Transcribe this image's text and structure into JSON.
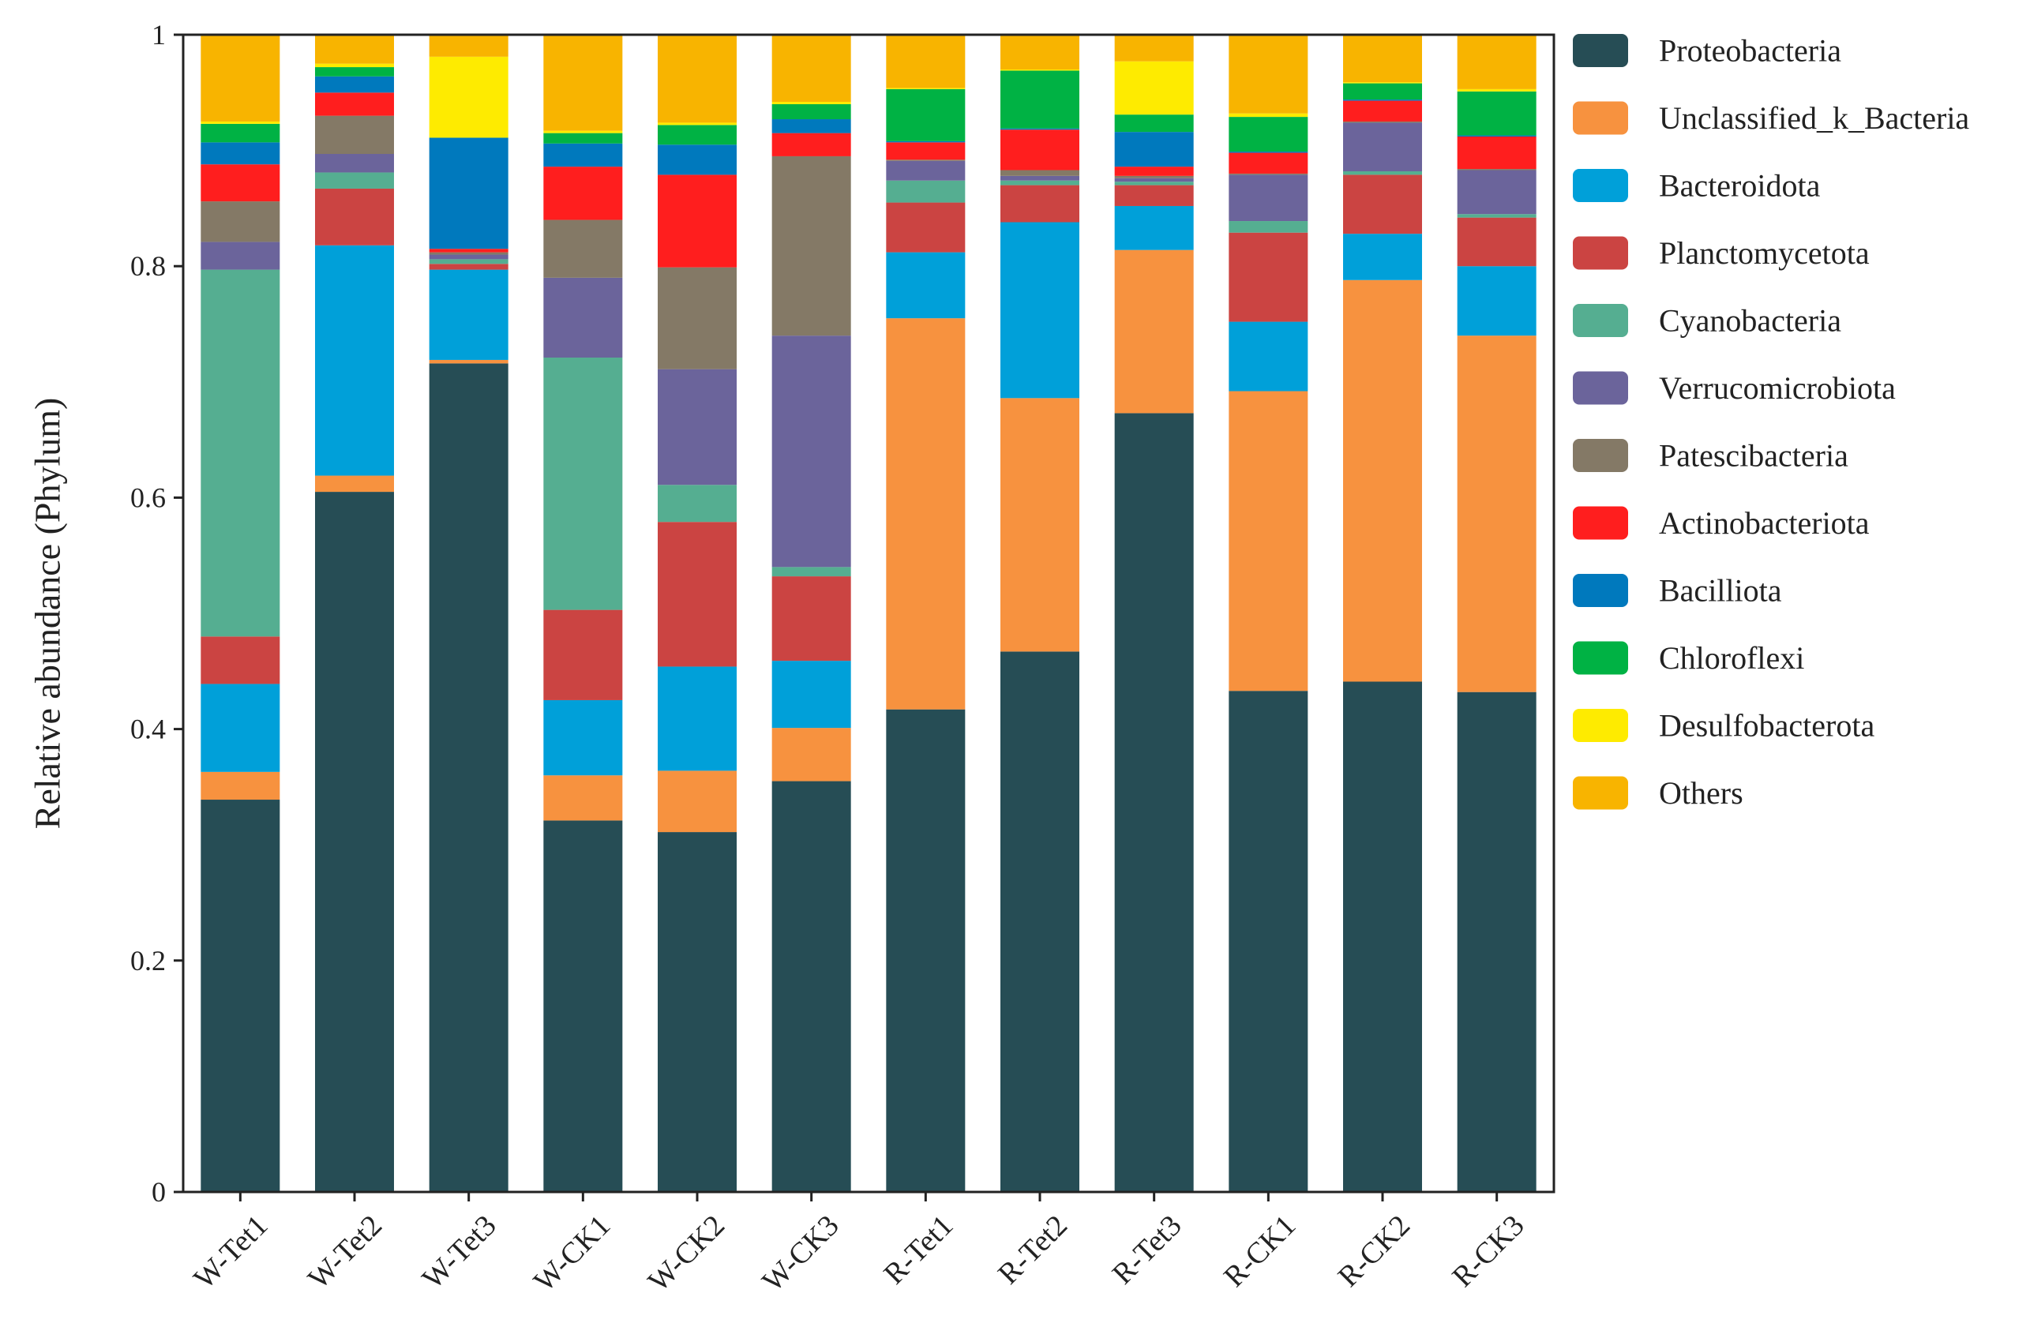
{
  "chart_data": {
    "type": "bar",
    "stacked": true,
    "title": "",
    "xlabel": "",
    "ylabel": "Relative abundance (Phylum)",
    "ylim": [
      0,
      1
    ],
    "yticks": [
      "0",
      "0.2",
      "0.4",
      "0.6",
      "0.8",
      "1"
    ],
    "ytick_values": [
      0,
      0.2,
      0.4,
      0.6,
      0.8,
      1
    ],
    "legend_position": "right",
    "categories": [
      "W-Tet1",
      "W-Tet2",
      "W-Tet3",
      "W-CK1",
      "W-CK2",
      "W-CK3",
      "R-Tet1",
      "R-Tet2",
      "R-Tet3",
      "R-CK1",
      "R-CK2",
      "R-CK3"
    ],
    "series": [
      {
        "name": "Proteobacteria",
        "color": "#264D55",
        "values": [
          0.339,
          0.605,
          0.716,
          0.321,
          0.311,
          0.355,
          0.417,
          0.467,
          0.673,
          0.433,
          0.441,
          0.432
        ]
      },
      {
        "name": "Unclassified_k_Bacteria",
        "color": "#F7923F",
        "values": [
          0.024,
          0.014,
          0.003,
          0.039,
          0.053,
          0.046,
          0.338,
          0.219,
          0.141,
          0.259,
          0.347,
          0.308
        ]
      },
      {
        "name": "Bacteroidota",
        "color": "#00A0D9",
        "values": [
          0.076,
          0.199,
          0.078,
          0.065,
          0.09,
          0.058,
          0.057,
          0.152,
          0.038,
          0.06,
          0.04,
          0.06
        ]
      },
      {
        "name": "Planctomycetota",
        "color": "#CB4442",
        "values": [
          0.041,
          0.049,
          0.005,
          0.078,
          0.125,
          0.073,
          0.043,
          0.032,
          0.018,
          0.077,
          0.051,
          0.042
        ]
      },
      {
        "name": "Cyanobacteria",
        "color": "#55AE91",
        "values": [
          0.317,
          0.014,
          0.004,
          0.218,
          0.032,
          0.008,
          0.019,
          0.004,
          0.003,
          0.01,
          0.003,
          0.003
        ]
      },
      {
        "name": "Verrucomicrobiota",
        "color": "#6B649B",
        "values": [
          0.024,
          0.016,
          0.004,
          0.069,
          0.1,
          0.2,
          0.017,
          0.004,
          0.003,
          0.04,
          0.042,
          0.038
        ]
      },
      {
        "name": "Patescibacteria",
        "color": "#847966",
        "values": [
          0.035,
          0.033,
          0.002,
          0.05,
          0.088,
          0.155,
          0.001,
          0.005,
          0.002,
          0.001,
          0.001,
          0.001
        ]
      },
      {
        "name": "Actinobacteriota",
        "color": "#FF1E1E",
        "values": [
          0.032,
          0.02,
          0.003,
          0.046,
          0.08,
          0.02,
          0.015,
          0.035,
          0.008,
          0.018,
          0.018,
          0.028
        ]
      },
      {
        "name": "Bacilliota",
        "color": "#0079BD",
        "values": [
          0.019,
          0.014,
          0.096,
          0.02,
          0.026,
          0.012,
          0.001,
          0.001,
          0.03,
          0.001,
          0.001,
          0.001
        ]
      },
      {
        "name": "Chloroflexi",
        "color": "#00B244",
        "values": [
          0.016,
          0.008,
          0.0,
          0.009,
          0.017,
          0.013,
          0.045,
          0.05,
          0.015,
          0.03,
          0.014,
          0.038
        ]
      },
      {
        "name": "Desulfobacterota",
        "color": "#FEEB00",
        "values": [
          0.002,
          0.003,
          0.07,
          0.002,
          0.002,
          0.002,
          0.001,
          0.001,
          0.046,
          0.003,
          0.001,
          0.002
        ]
      },
      {
        "name": "Others",
        "color": "#F8B400",
        "values": [
          0.075,
          0.025,
          0.019,
          0.083,
          0.076,
          0.058,
          0.046,
          0.03,
          0.023,
          0.068,
          0.041,
          0.047
        ]
      }
    ]
  }
}
